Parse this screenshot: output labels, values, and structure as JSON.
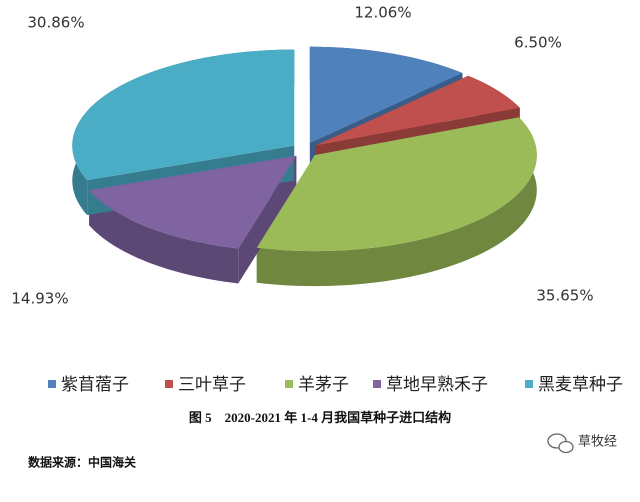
{
  "chart_data": {
    "type": "pie",
    "title": "图 5　2020-2021 年 1-4 月我国草种子进口结构",
    "categories": [
      "紫苜蓿子",
      "三叶草子",
      "羊茅子",
      "草地早熟禾子",
      "黑麦草种子"
    ],
    "values": [
      12.06,
      6.5,
      35.65,
      14.93,
      30.86
    ],
    "value_labels": [
      "12.06%",
      "6.50%",
      "35.65%",
      "14.93%",
      "30.86%"
    ],
    "colors": [
      "#4f81bd",
      "#c0504d",
      "#9bbb59",
      "#8064a2",
      "#4bacc6"
    ],
    "legend": "bottom",
    "source": "数据来源：中国海关",
    "watermark": "草牧经"
  }
}
